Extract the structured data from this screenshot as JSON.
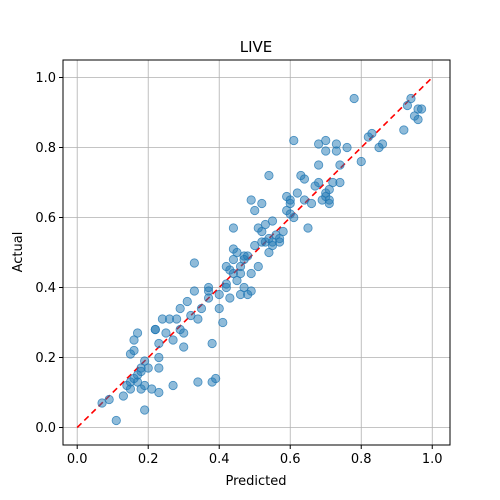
{
  "chart_data": {
    "type": "scatter",
    "title": "LIVE",
    "xlabel": "Predicted",
    "ylabel": "Actual",
    "xlim": [
      -0.04,
      1.05
    ],
    "ylim": [
      -0.05,
      1.05
    ],
    "xticks": [
      "0.0",
      "0.2",
      "0.4",
      "0.6",
      "0.8",
      "1.0"
    ],
    "yticks": [
      "0.0",
      "0.2",
      "0.4",
      "0.6",
      "0.8",
      "1.0"
    ],
    "grid": true,
    "point_color": "#1f77b4",
    "point_alpha": 0.5,
    "reference_line": {
      "from": [
        0,
        0
      ],
      "to": [
        1,
        1
      ],
      "color": "#ff0000",
      "style": "dashed"
    },
    "points": [
      [
        0.07,
        0.07
      ],
      [
        0.09,
        0.08
      ],
      [
        0.11,
        0.02
      ],
      [
        0.13,
        0.09
      ],
      [
        0.14,
        0.12
      ],
      [
        0.15,
        0.11
      ],
      [
        0.15,
        0.13
      ],
      [
        0.16,
        0.14
      ],
      [
        0.15,
        0.21
      ],
      [
        0.16,
        0.22
      ],
      [
        0.16,
        0.25
      ],
      [
        0.17,
        0.27
      ],
      [
        0.17,
        0.15
      ],
      [
        0.17,
        0.13
      ],
      [
        0.18,
        0.17
      ],
      [
        0.18,
        0.16
      ],
      [
        0.18,
        0.11
      ],
      [
        0.19,
        0.05
      ],
      [
        0.19,
        0.12
      ],
      [
        0.19,
        0.19
      ],
      [
        0.2,
        0.17
      ],
      [
        0.21,
        0.11
      ],
      [
        0.22,
        0.28
      ],
      [
        0.22,
        0.28
      ],
      [
        0.23,
        0.24
      ],
      [
        0.23,
        0.17
      ],
      [
        0.23,
        0.2
      ],
      [
        0.23,
        0.1
      ],
      [
        0.24,
        0.31
      ],
      [
        0.25,
        0.27
      ],
      [
        0.26,
        0.31
      ],
      [
        0.27,
        0.25
      ],
      [
        0.27,
        0.12
      ],
      [
        0.28,
        0.31
      ],
      [
        0.29,
        0.34
      ],
      [
        0.29,
        0.28
      ],
      [
        0.3,
        0.27
      ],
      [
        0.3,
        0.23
      ],
      [
        0.31,
        0.36
      ],
      [
        0.32,
        0.32
      ],
      [
        0.33,
        0.39
      ],
      [
        0.33,
        0.47
      ],
      [
        0.34,
        0.31
      ],
      [
        0.34,
        0.13
      ],
      [
        0.35,
        0.34
      ],
      [
        0.37,
        0.39
      ],
      [
        0.37,
        0.37
      ],
      [
        0.37,
        0.4
      ],
      [
        0.38,
        0.13
      ],
      [
        0.38,
        0.24
      ],
      [
        0.39,
        0.14
      ],
      [
        0.4,
        0.38
      ],
      [
        0.4,
        0.34
      ],
      [
        0.41,
        0.3
      ],
      [
        0.42,
        0.41
      ],
      [
        0.42,
        0.46
      ],
      [
        0.42,
        0.4
      ],
      [
        0.43,
        0.37
      ],
      [
        0.43,
        0.45
      ],
      [
        0.44,
        0.48
      ],
      [
        0.44,
        0.51
      ],
      [
        0.44,
        0.57
      ],
      [
        0.44,
        0.44
      ],
      [
        0.45,
        0.5
      ],
      [
        0.45,
        0.42
      ],
      [
        0.46,
        0.46
      ],
      [
        0.46,
        0.38
      ],
      [
        0.46,
        0.44
      ],
      [
        0.47,
        0.48
      ],
      [
        0.47,
        0.49
      ],
      [
        0.47,
        0.4
      ],
      [
        0.48,
        0.49
      ],
      [
        0.48,
        0.38
      ],
      [
        0.49,
        0.39
      ],
      [
        0.49,
        0.44
      ],
      [
        0.49,
        0.65
      ],
      [
        0.5,
        0.62
      ],
      [
        0.5,
        0.52
      ],
      [
        0.51,
        0.46
      ],
      [
        0.51,
        0.57
      ],
      [
        0.52,
        0.53
      ],
      [
        0.52,
        0.64
      ],
      [
        0.52,
        0.56
      ],
      [
        0.53,
        0.58
      ],
      [
        0.53,
        0.53
      ],
      [
        0.54,
        0.54
      ],
      [
        0.54,
        0.72
      ],
      [
        0.54,
        0.5
      ],
      [
        0.55,
        0.59
      ],
      [
        0.55,
        0.53
      ],
      [
        0.55,
        0.52
      ],
      [
        0.56,
        0.55
      ],
      [
        0.57,
        0.53
      ],
      [
        0.57,
        0.54
      ],
      [
        0.58,
        0.56
      ],
      [
        0.59,
        0.62
      ],
      [
        0.59,
        0.66
      ],
      [
        0.6,
        0.61
      ],
      [
        0.6,
        0.65
      ],
      [
        0.6,
        0.64
      ],
      [
        0.61,
        0.82
      ],
      [
        0.61,
        0.6
      ],
      [
        0.62,
        0.67
      ],
      [
        0.63,
        0.72
      ],
      [
        0.64,
        0.65
      ],
      [
        0.64,
        0.71
      ],
      [
        0.65,
        0.57
      ],
      [
        0.66,
        0.64
      ],
      [
        0.67,
        0.69
      ],
      [
        0.68,
        0.7
      ],
      [
        0.68,
        0.75
      ],
      [
        0.68,
        0.81
      ],
      [
        0.69,
        0.65
      ],
      [
        0.7,
        0.66
      ],
      [
        0.7,
        0.82
      ],
      [
        0.7,
        0.79
      ],
      [
        0.7,
        0.67
      ],
      [
        0.71,
        0.68
      ],
      [
        0.71,
        0.64
      ],
      [
        0.71,
        0.65
      ],
      [
        0.72,
        0.7
      ],
      [
        0.73,
        0.81
      ],
      [
        0.73,
        0.79
      ],
      [
        0.74,
        0.75
      ],
      [
        0.74,
        0.7
      ],
      [
        0.76,
        0.8
      ],
      [
        0.78,
        0.94
      ],
      [
        0.8,
        0.76
      ],
      [
        0.82,
        0.83
      ],
      [
        0.83,
        0.84
      ],
      [
        0.85,
        0.8
      ],
      [
        0.86,
        0.81
      ],
      [
        0.92,
        0.85
      ],
      [
        0.93,
        0.92
      ],
      [
        0.94,
        0.94
      ],
      [
        0.95,
        0.89
      ],
      [
        0.96,
        0.88
      ],
      [
        0.96,
        0.91
      ],
      [
        0.97,
        0.91
      ]
    ]
  }
}
